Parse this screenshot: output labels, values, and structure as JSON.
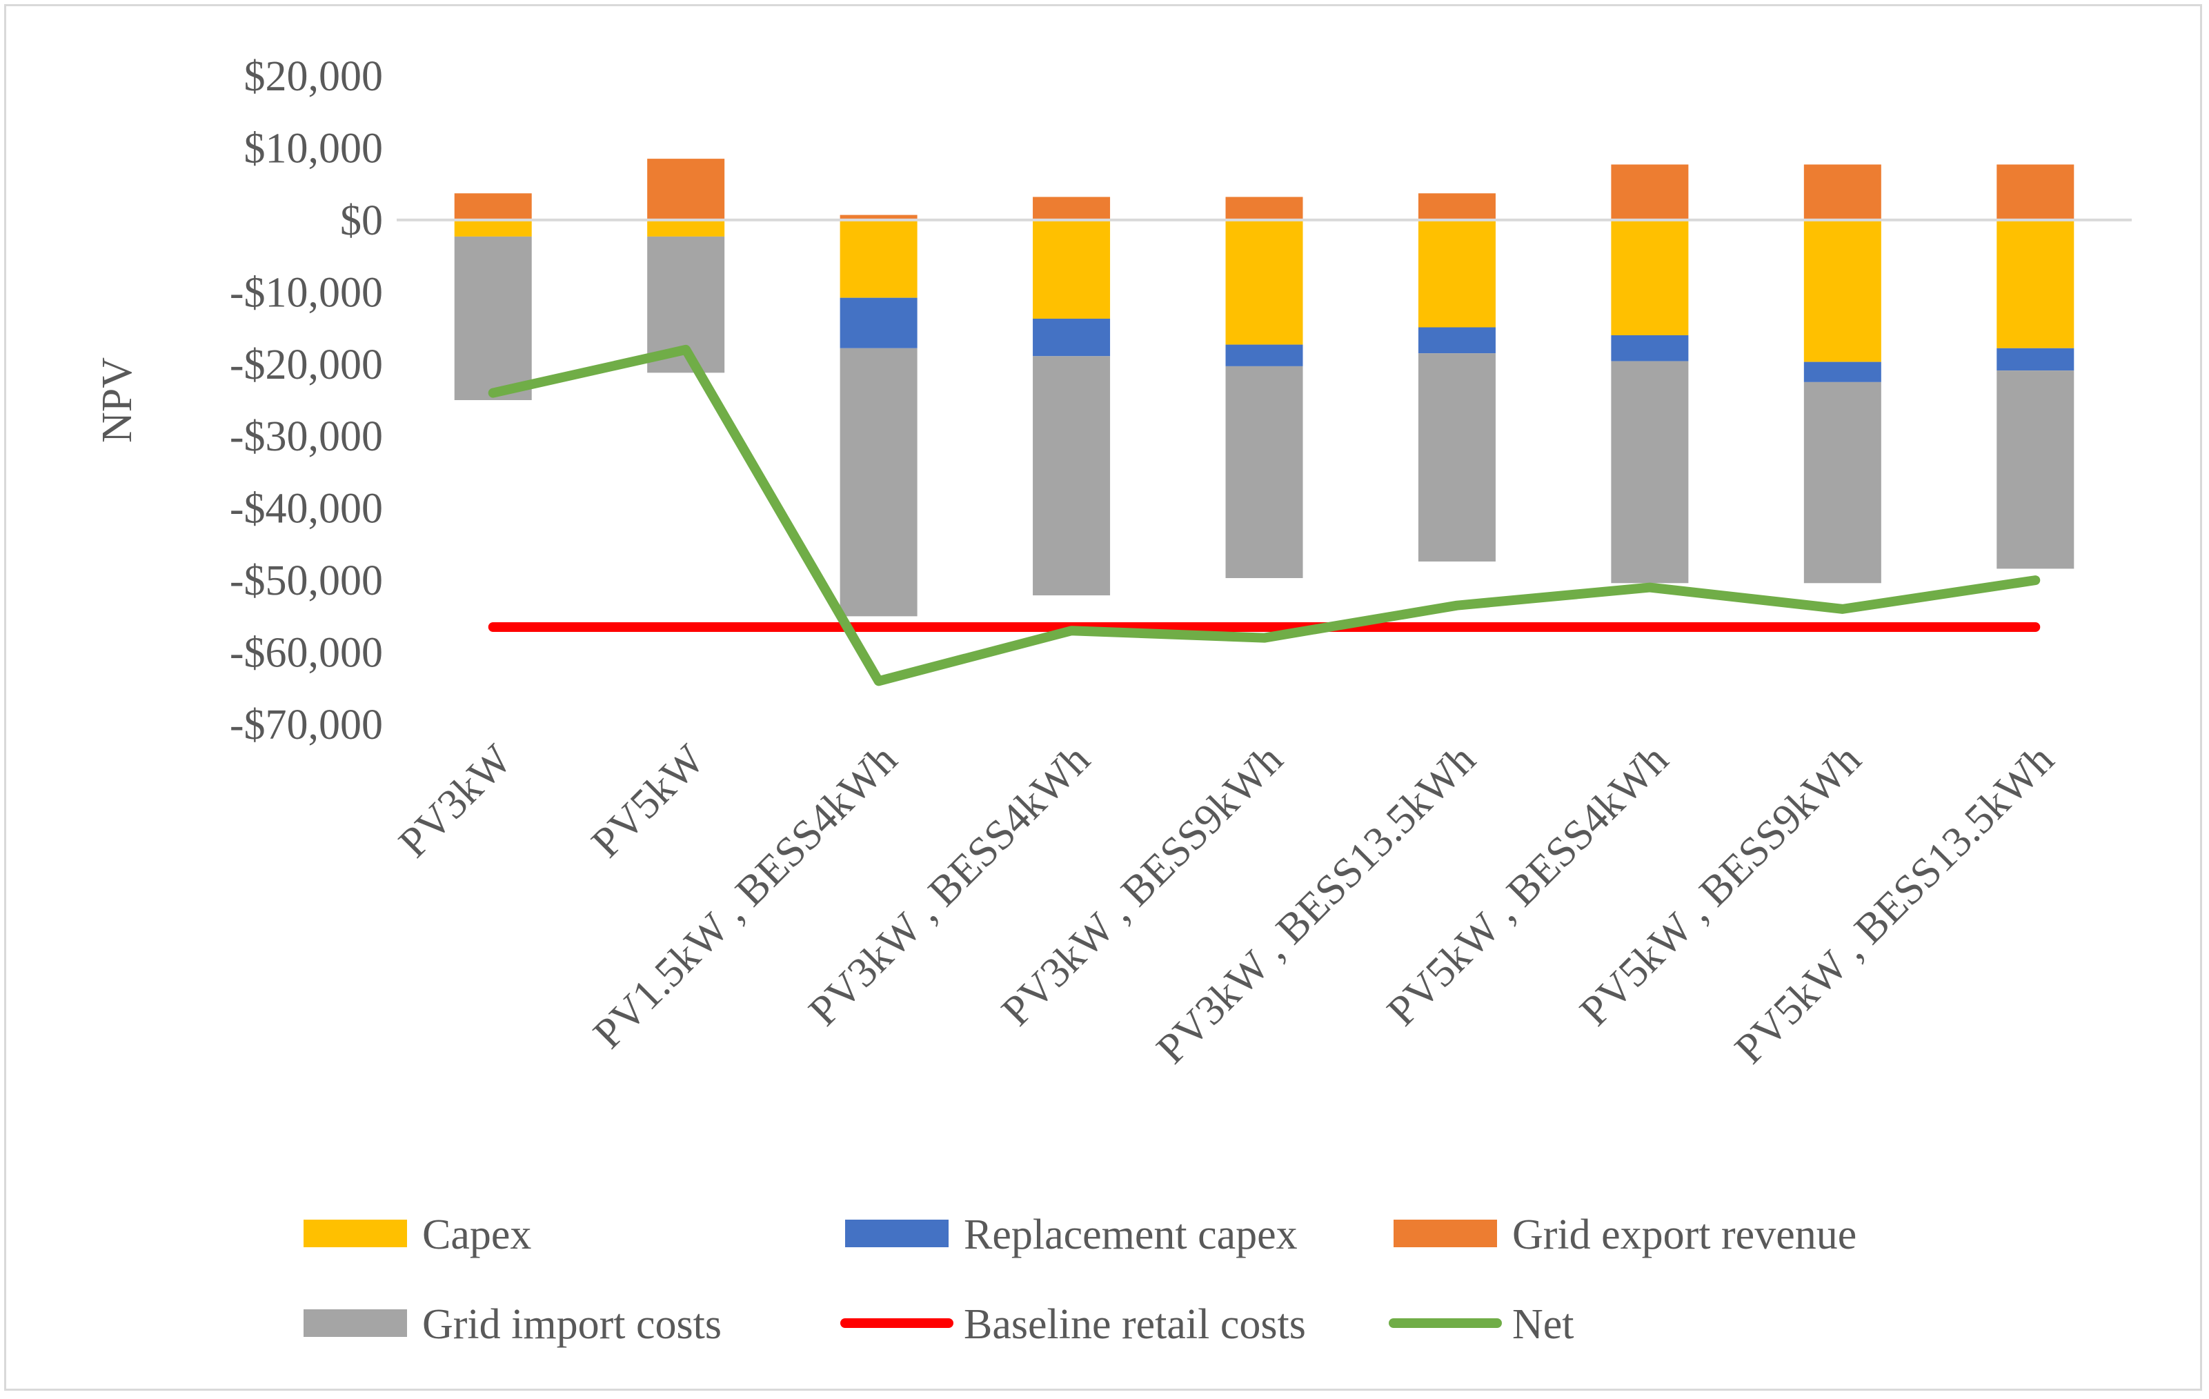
{
  "chart_data": {
    "type": "bar",
    "stacked": true,
    "title": "",
    "xlabel": "",
    "ylabel": "NPV",
    "ylim": [
      -70000,
      20000
    ],
    "yticks": [
      20000,
      10000,
      0,
      -10000,
      -20000,
      -30000,
      -40000,
      -50000,
      -60000,
      -70000
    ],
    "ytick_labels": [
      "$20,000",
      "$10,000",
      "$0",
      "-$10,000",
      "-$20,000",
      "-$30,000",
      "-$40,000",
      "-$50,000",
      "-$60,000",
      "-$70,000"
    ],
    "categories": [
      "PV3kW",
      "PV5kW",
      "PV1.5kW , BESS4kWh",
      "PV3kW , BESS4kWh",
      "PV3kW , BESS9kWh",
      "PV3kW , BESS13.5kWh",
      "PV5kW , BESS4kWh",
      "PV5kW , BESS9kWh",
      "PV5kW , BESS13.5kWh"
    ],
    "series": [
      {
        "name": "Capex",
        "kind": "bar",
        "color": "#FFC000",
        "values": [
          -2300,
          -2300,
          -10800,
          -13700,
          -17300,
          -14900,
          -16000,
          -19700,
          -17800
        ]
      },
      {
        "name": "Replacement capex",
        "kind": "bar",
        "color": "#4472C4",
        "values": [
          0,
          0,
          -7000,
          -5200,
          -3000,
          -3600,
          -3600,
          -2800,
          -3100
        ]
      },
      {
        "name": "Grid export revenue",
        "kind": "bar",
        "color": "#ED7D31",
        "values": [
          3700,
          8500,
          700,
          3200,
          3200,
          3700,
          7700,
          7700,
          7700
        ]
      },
      {
        "name": "Grid import costs",
        "kind": "bar",
        "color": "#A5A5A5",
        "values": [
          -22700,
          -18900,
          -37200,
          -33200,
          -29400,
          -28900,
          -30800,
          -27900,
          -27500
        ]
      },
      {
        "name": "Baseline retail costs",
        "kind": "line",
        "color": "#FF0000",
        "values": [
          -56500,
          -56500,
          -56500,
          -56500,
          -56500,
          -56500,
          -56500,
          -56500,
          -56500
        ]
      },
      {
        "name": "Net",
        "kind": "line",
        "color": "#70AD47",
        "values": [
          -24000,
          -18000,
          -64000,
          -57000,
          -58000,
          -53500,
          -51000,
          -54000,
          -50000
        ]
      }
    ],
    "legend_position": "bottom",
    "grid": false
  }
}
